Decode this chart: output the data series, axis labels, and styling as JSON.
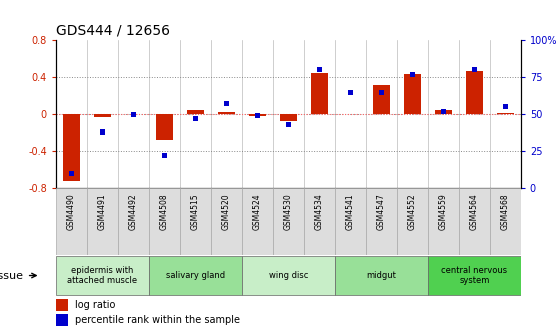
{
  "title": "GDS444 / 12656",
  "samples": [
    "GSM4490",
    "GSM4491",
    "GSM4492",
    "GSM4508",
    "GSM4515",
    "GSM4520",
    "GSM4524",
    "GSM4530",
    "GSM4534",
    "GSM4541",
    "GSM4547",
    "GSM4552",
    "GSM4559",
    "GSM4564",
    "GSM4568"
  ],
  "log_ratio": [
    -0.72,
    -0.03,
    0.0,
    -0.28,
    0.05,
    0.02,
    -0.02,
    -0.07,
    0.45,
    0.0,
    0.32,
    0.44,
    0.05,
    0.47,
    0.01
  ],
  "percentile": [
    10,
    38,
    50,
    22,
    47,
    57,
    49,
    43,
    80,
    65,
    65,
    77,
    52,
    80,
    55
  ],
  "tissue_groups": [
    {
      "label": "epidermis with\nattached muscle",
      "start": 0,
      "end": 3,
      "color": "#c8eec8"
    },
    {
      "label": "salivary gland",
      "start": 3,
      "end": 6,
      "color": "#98e098"
    },
    {
      "label": "wing disc",
      "start": 6,
      "end": 9,
      "color": "#c8eec8"
    },
    {
      "label": "midgut",
      "start": 9,
      "end": 12,
      "color": "#98e098"
    },
    {
      "label": "central nervous\nsystem",
      "start": 12,
      "end": 15,
      "color": "#50d050"
    }
  ],
  "ylim_left": [
    -0.8,
    0.8
  ],
  "yticks_left": [
    -0.8,
    -0.4,
    0.0,
    0.4,
    0.8
  ],
  "ytick_labels_left": [
    "-0.8",
    "-0.4",
    "0",
    "0.4",
    "0.8"
  ],
  "ylim_right": [
    0,
    100
  ],
  "yticks_right": [
    0,
    25,
    50,
    75,
    100
  ],
  "ytick_labels_right": [
    "0",
    "25",
    "50",
    "75",
    "100%"
  ],
  "red_color": "#cc2200",
  "blue_color": "#0000cc",
  "zero_line_color": "#ff6666",
  "dot_line_color": "#888888",
  "tissue_label": "tissue",
  "sample_bg_color": "#dddddd",
  "legend_items": [
    "log ratio",
    "percentile rank within the sample"
  ]
}
